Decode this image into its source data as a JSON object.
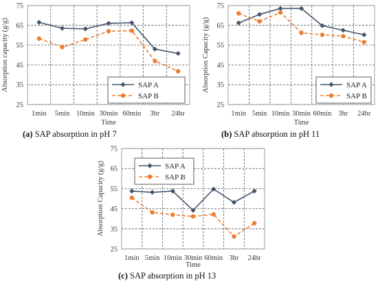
{
  "chart_data": [
    {
      "type": "line",
      "caption_tag": "(a)",
      "caption_text": " SAP absorption in pH 7",
      "xlabel": "Time",
      "ylabel": "Absorption capacity (g/g)",
      "categories": [
        "1min",
        "5min",
        "10min",
        "30min",
        "60min",
        "3hr",
        "24hr"
      ],
      "ylim": [
        25,
        75
      ],
      "yticks": [
        25,
        35,
        45,
        55,
        65,
        75
      ],
      "grid": true,
      "legend_position": "bottom-right",
      "series": [
        {
          "name": "SAP A",
          "values": [
            66.5,
            63.5,
            63.2,
            66.0,
            66.3,
            53.0,
            50.8
          ]
        },
        {
          "name": "SAP B",
          "values": [
            58.3,
            54.0,
            57.8,
            62.0,
            62.3,
            47.0,
            41.8
          ]
        }
      ]
    },
    {
      "type": "line",
      "caption_tag": "(b)",
      "caption_text": " SAP absorption in pH 11",
      "xlabel": "Time",
      "ylabel": "Absorption Capacity (g/g)",
      "categories": [
        "1min",
        "5min",
        "10min",
        "30min",
        "60min",
        "3hr",
        "24hr"
      ],
      "ylim": [
        25,
        75
      ],
      "yticks": [
        25,
        35,
        45,
        55,
        65,
        75
      ],
      "grid": true,
      "legend_position": "bottom-right",
      "series": [
        {
          "name": "SAP A",
          "values": [
            66.2,
            70.5,
            73.5,
            73.5,
            64.8,
            62.5,
            60.2
          ]
        },
        {
          "name": "SAP B",
          "values": [
            71.0,
            67.0,
            71.5,
            61.2,
            60.2,
            59.5,
            56.5
          ]
        }
      ]
    },
    {
      "type": "line",
      "caption_tag": "(c)",
      "caption_text": " SAP absorption in pH 13",
      "xlabel": "Time",
      "ylabel": "Absorption Capacity (g/g)",
      "categories": [
        "1min",
        "5min",
        "10min",
        "30min",
        "60min",
        "3hr",
        "24hr"
      ],
      "ylim": [
        25,
        75
      ],
      "yticks": [
        25,
        35,
        45,
        55,
        65,
        75
      ],
      "grid": true,
      "legend_position": "top-left",
      "series": [
        {
          "name": "SAP A",
          "values": [
            53.8,
            53.2,
            53.8,
            44.2,
            54.8,
            48.2,
            53.8
          ]
        },
        {
          "name": "SAP B",
          "values": [
            50.5,
            43.2,
            42.0,
            41.2,
            42.2,
            31.2,
            37.8
          ]
        }
      ]
    }
  ],
  "colors": {
    "sap_a": "#44546A",
    "sap_b": "#ED7D31",
    "grid": "#555555",
    "axis": "#888888"
  }
}
